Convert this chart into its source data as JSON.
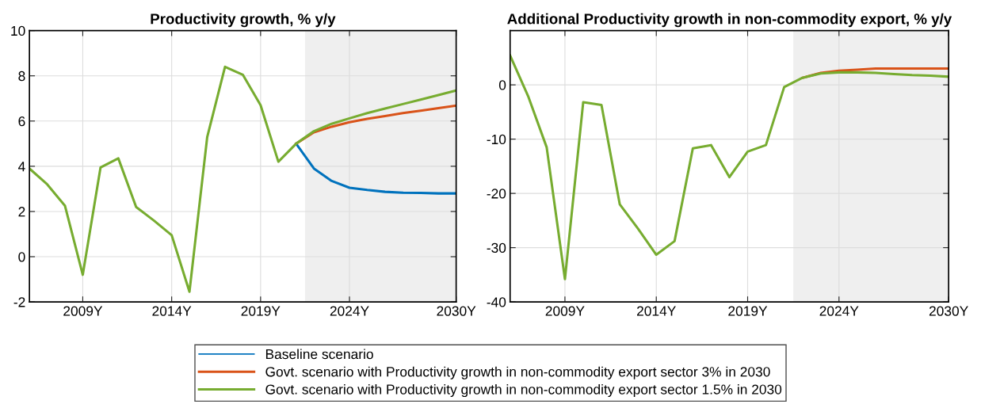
{
  "chart_data": [
    {
      "type": "line",
      "title": "Productivity growth, % y/y",
      "x": [
        2006,
        2007,
        2008,
        2009,
        2010,
        2011,
        2012,
        2013,
        2014,
        2015,
        2016,
        2017,
        2018,
        2019,
        2020,
        2021,
        2022,
        2023,
        2024,
        2025,
        2026,
        2027,
        2028,
        2029,
        2030
      ],
      "series": [
        {
          "name": "Baseline scenario",
          "color": "#0072bd",
          "values": [
            null,
            null,
            null,
            null,
            null,
            null,
            null,
            null,
            null,
            null,
            null,
            null,
            null,
            null,
            null,
            5.0,
            3.9,
            3.35,
            3.05,
            2.95,
            2.87,
            2.83,
            2.82,
            2.8,
            2.8
          ]
        },
        {
          "name": "Govt. scenario with Productivity growth in non-commodity export sector 3% in 2030",
          "color": "#d95319",
          "values": [
            null,
            null,
            null,
            null,
            null,
            null,
            null,
            null,
            null,
            null,
            null,
            null,
            null,
            null,
            null,
            5.0,
            5.5,
            5.75,
            5.95,
            6.1,
            6.22,
            6.35,
            6.46,
            6.57,
            6.68
          ]
        },
        {
          "name": "Govt. scenario with Productivity growth in non-commodity export sector 1.5% in 2030",
          "color": "#77ac30",
          "values": [
            3.9,
            3.2,
            2.25,
            -0.8,
            3.95,
            4.35,
            2.2,
            1.6,
            0.95,
            -1.55,
            5.3,
            8.4,
            8.05,
            6.7,
            4.2,
            5.0,
            5.55,
            5.88,
            6.12,
            6.35,
            6.55,
            6.75,
            6.95,
            7.15,
            7.35
          ]
        }
      ],
      "xlim": [
        2006,
        2030
      ],
      "xticks": [
        {
          "value": 2009,
          "label": "2009Y"
        },
        {
          "value": 2014,
          "label": "2014Y"
        },
        {
          "value": 2019,
          "label": "2019Y"
        },
        {
          "value": 2024,
          "label": "2024Y"
        },
        {
          "value": 2030,
          "label": "2030Y"
        }
      ],
      "ylim": [
        -2,
        10
      ],
      "yticks": [
        -2,
        0,
        2,
        4,
        6,
        8,
        10
      ],
      "bands": [
        {
          "axis": "x",
          "from": 2021.5,
          "to": 2030,
          "color": "#efefef"
        }
      ],
      "grid": true,
      "legend": "bottom"
    },
    {
      "type": "line",
      "title": "Additional Productivity growth in non-commodity export, % y/y",
      "x": [
        2006,
        2007,
        2008,
        2009,
        2010,
        2011,
        2012,
        2013,
        2014,
        2015,
        2016,
        2017,
        2018,
        2019,
        2020,
        2021,
        2022,
        2023,
        2024,
        2025,
        2026,
        2027,
        2028,
        2029,
        2030
      ],
      "series": [
        {
          "color": "#d95319",
          "values": [
            null,
            null,
            null,
            null,
            null,
            null,
            null,
            null,
            null,
            null,
            null,
            null,
            null,
            null,
            null,
            null,
            1.3,
            2.2,
            2.6,
            2.8,
            3,
            3,
            3,
            3,
            3
          ]
        },
        {
          "color": "#77ac30",
          "values": [
            5.4,
            -2.2,
            -11.5,
            -35.8,
            -3.2,
            -3.7,
            -22,
            -26.5,
            -31.3,
            -28.8,
            -11.7,
            -11.1,
            -17,
            -12.3,
            -11.1,
            -0.4,
            1.3,
            2.1,
            2.3,
            2.3,
            2.2,
            2,
            1.8,
            1.7,
            1.5
          ]
        }
      ],
      "xlim": [
        2006,
        2030
      ],
      "xticks": [
        {
          "value": 2009,
          "label": "2009Y"
        },
        {
          "value": 2014,
          "label": "2014Y"
        },
        {
          "value": 2019,
          "label": "2019Y"
        },
        {
          "value": 2024,
          "label": "2024Y"
        },
        {
          "value": 2030,
          "label": "2030Y"
        }
      ],
      "ylim": [
        -40,
        10
      ],
      "yticks": [
        -40,
        -30,
        -20,
        -10,
        0
      ],
      "bands": [
        {
          "axis": "x",
          "from": 2021.5,
          "to": 2030,
          "color": "#efefef"
        }
      ],
      "grid": true
    }
  ]
}
